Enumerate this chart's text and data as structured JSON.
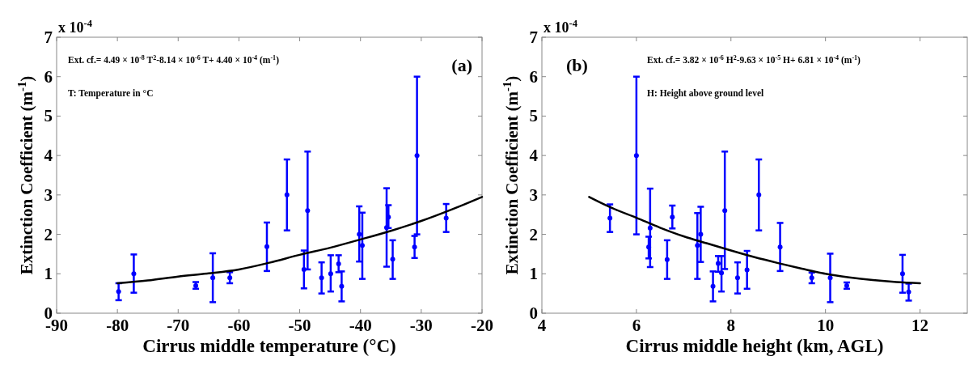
{
  "chart_data": [
    {
      "type": "scatter",
      "xlabel": "Cirrus middle temperature (°C)",
      "ylabel": "Extinction Coefficient (m$^{-1}$)",
      "xlim": [
        -90,
        -20
      ],
      "xticks": [
        -90,
        -80,
        -70,
        -60,
        -50,
        -40,
        -30,
        -20
      ],
      "ylim": [
        0,
        7
      ],
      "yticks": [
        0,
        1,
        2,
        3,
        4,
        5,
        6,
        7
      ],
      "grid": false,
      "annotations": [
        "x 10$^{-4}$",
        "Ext. cf.= 4.49 × 10$^{-8}$ T$^{2}$-8.14 × 10$^{-6}$ T+ 4.40 × 10$^{-4}$ (m$^{-1}$)",
        "T: Temperature in °C",
        "(a)"
      ],
      "series": [
        {
          "marker": "circle",
          "color": "#0000ff",
          "x": [
            -79.8,
            -77.3,
            -67.1,
            -64.3,
            -61.5,
            -55.4,
            -52.1,
            -48.7,
            -49.3,
            -46.4,
            -44.9,
            -43.6,
            -43.1,
            -40.2,
            -39.7,
            -35.7,
            -35.4,
            -34.7,
            -31.1,
            -30.7,
            -25.9
          ],
          "values": [
            0.55,
            1.0,
            0.7,
            0.9,
            0.9,
            1.69,
            3.0,
            2.6,
            1.11,
            0.9,
            1.0,
            1.25,
            0.68,
            2.0,
            1.72,
            2.17,
            2.44,
            1.37,
            1.68,
            4.0,
            2.41
          ],
          "errors": [
            [
              0.33,
              0.76
            ],
            [
              0.52,
              1.49
            ],
            [
              0.62,
              0.79
            ],
            [
              0.28,
              1.52
            ],
            [
              0.76,
              1.04
            ],
            [
              1.07,
              2.3
            ],
            [
              2.1,
              3.9
            ],
            [
              1.11,
              4.1
            ],
            [
              0.63,
              1.59
            ],
            [
              0.5,
              1.29
            ],
            [
              0.55,
              1.47
            ],
            [
              1.04,
              1.47
            ],
            [
              0.3,
              1.06
            ],
            [
              1.31,
              2.71
            ],
            [
              0.87,
              2.55
            ],
            [
              1.18,
              3.17
            ],
            [
              2.16,
              2.74
            ],
            [
              0.87,
              1.85
            ],
            [
              1.4,
              1.96
            ],
            [
              2.0,
              6.0
            ],
            [
              2.06,
              2.77
            ]
          ]
        },
        {
          "type": "line",
          "color": "#000000",
          "x": [
            -80,
            -75,
            -70,
            -65,
            -60,
            -55,
            -50,
            -45,
            -40,
            -35,
            -30,
            -25,
            -20
          ],
          "values": [
            0.76,
            0.83,
            0.93,
            1.01,
            1.11,
            1.28,
            1.48,
            1.66,
            1.87,
            2.09,
            2.34,
            2.63,
            2.95
          ]
        }
      ]
    },
    {
      "type": "scatter",
      "xlabel": "Cirrus middle height (km, AGL)",
      "ylabel": "Extinction Coefficient (m$^{-1}$)",
      "xlim": [
        4,
        13
      ],
      "xticks": [
        4,
        6,
        8,
        10,
        12
      ],
      "ylim": [
        0,
        7
      ],
      "yticks": [
        0,
        1,
        2,
        3,
        4,
        5,
        6,
        7
      ],
      "grid": false,
      "annotations": [
        "x 10$^{-4}$",
        "Ext. cf.= 3.82 × 10$^{-6}$ H$^{2}$-9.63 × 10$^{-5}$ H+ 6.81 × 10$^{-4}$ (m$^{-1}$)",
        "H: Height above ground level",
        "(b)"
      ],
      "series": [
        {
          "marker": "circle",
          "color": "#0000ff",
          "x": [
            5.44,
            6.0,
            6.26,
            6.29,
            6.65,
            6.76,
            7.29,
            7.36,
            7.62,
            7.73,
            7.8,
            7.87,
            8.14,
            8.34,
            8.59,
            9.04,
            9.71,
            10.1,
            10.45,
            11.63,
            11.76
          ],
          "values": [
            2.41,
            4.0,
            1.68,
            2.16,
            1.36,
            2.44,
            1.72,
            2.0,
            0.68,
            1.26,
            1.02,
            2.6,
            0.9,
            1.1,
            3.0,
            1.68,
            0.9,
            0.9,
            0.7,
            1.0,
            0.54
          ],
          "errors": [
            [
              2.06,
              2.76
            ],
            [
              2.0,
              6.0
            ],
            [
              1.39,
              1.94
            ],
            [
              1.17,
              3.16
            ],
            [
              0.87,
              1.85
            ],
            [
              2.15,
              2.73
            ],
            [
              0.87,
              2.54
            ],
            [
              1.3,
              2.7
            ],
            [
              0.3,
              1.06
            ],
            [
              1.05,
              1.45
            ],
            [
              0.55,
              1.45
            ],
            [
              1.12,
              4.1
            ],
            [
              0.5,
              1.29
            ],
            [
              0.62,
              1.58
            ],
            [
              2.1,
              3.9
            ],
            [
              1.07,
              2.29
            ],
            [
              0.76,
              1.03
            ],
            [
              0.28,
              1.51
            ],
            [
              0.62,
              0.78
            ],
            [
              0.52,
              1.48
            ],
            [
              0.32,
              0.75
            ]
          ]
        },
        {
          "type": "line",
          "color": "#000000",
          "x": [
            5,
            5.5,
            6,
            6.5,
            7,
            7.5,
            8,
            8.5,
            9,
            9.5,
            10,
            10.5,
            11,
            11.5,
            12
          ],
          "values": [
            2.95,
            2.66,
            2.42,
            2.17,
            1.95,
            1.77,
            1.59,
            1.42,
            1.27,
            1.13,
            1.0,
            0.91,
            0.84,
            0.79,
            0.76
          ]
        }
      ]
    }
  ]
}
